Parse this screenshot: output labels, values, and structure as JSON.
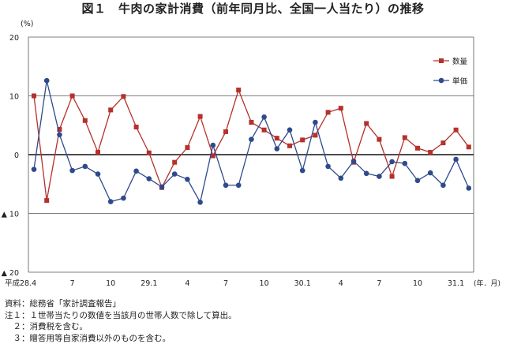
{
  "chart_data": {
    "type": "line",
    "title": "図１　牛肉の家計消費（前年同月比、全国一人当たり）の推移",
    "unit_label": "(%)",
    "x_unit_label": "(年．月)",
    "ylim": [
      -20,
      20
    ],
    "y_ticks": [
      "20",
      "10",
      "0",
      "▲ 10",
      "▲ 20"
    ],
    "y_tick_values": [
      20,
      10,
      0,
      -10,
      -20
    ],
    "grid": "horizontal",
    "legend_position": "right",
    "x": [
      "28.4",
      "28.5",
      "28.6",
      "28.7",
      "28.8",
      "28.9",
      "28.10",
      "28.11",
      "28.12",
      "29.1",
      "29.2",
      "29.3",
      "29.4",
      "29.5",
      "29.6",
      "29.7",
      "29.8",
      "29.9",
      "29.10",
      "29.11",
      "29.12",
      "30.1",
      "30.2",
      "30.3",
      "30.4",
      "30.5",
      "30.6",
      "30.7",
      "30.8",
      "30.9",
      "30.10",
      "30.11",
      "30.12",
      "31.1",
      "31.2",
      "31.3"
    ],
    "x_tick_labels": [
      {
        "index": 0,
        "label": "平成28.4"
      },
      {
        "index": 3,
        "label": "7"
      },
      {
        "index": 6,
        "label": "10"
      },
      {
        "index": 9,
        "label": "29.1"
      },
      {
        "index": 12,
        "label": "4"
      },
      {
        "index": 15,
        "label": "7"
      },
      {
        "index": 18,
        "label": "10"
      },
      {
        "index": 21,
        "label": "30.1"
      },
      {
        "index": 24,
        "label": "4"
      },
      {
        "index": 27,
        "label": "7"
      },
      {
        "index": 30,
        "label": "10"
      },
      {
        "index": 33,
        "label": "31.1"
      }
    ],
    "series": [
      {
        "name": "数量",
        "color": "#b5312c",
        "marker": "square",
        "values": [
          10.0,
          -7.8,
          4.3,
          10.0,
          5.8,
          0.4,
          7.6,
          9.9,
          4.7,
          0.3,
          -5.6,
          -1.3,
          1.2,
          6.5,
          -0.2,
          3.9,
          11.0,
          5.5,
          4.2,
          2.8,
          1.5,
          2.5,
          3.3,
          7.2,
          7.9,
          -1.3,
          5.3,
          2.6,
          -3.7,
          2.9,
          1.1,
          0.4,
          2.0,
          4.2,
          1.3,
          null
        ]
      },
      {
        "name": "単価",
        "color": "#2e4a8c",
        "marker": "circle",
        "values": [
          -2.5,
          12.6,
          3.4,
          -2.7,
          -2.0,
          -3.3,
          -8.0,
          -7.4,
          -2.8,
          -4.1,
          -5.5,
          -3.3,
          -4.2,
          -8.1,
          1.6,
          -5.2,
          -5.2,
          2.6,
          6.4,
          1.0,
          4.2,
          -2.7,
          5.5,
          -2.0,
          -4.0,
          -1.1,
          -3.2,
          -3.7,
          -1.2,
          -1.5,
          -4.4,
          -3.1,
          -5.2,
          -0.8,
          -5.7,
          null
        ]
      }
    ]
  },
  "notes": [
    "資料：総務省「家計調査報告」",
    "注１：１世帯当たりの数値を当該月の世帯人数で除して算出。",
    "　２：消費税を含む。",
    "　３：贈答用等自家消費以外のものを含む。"
  ]
}
